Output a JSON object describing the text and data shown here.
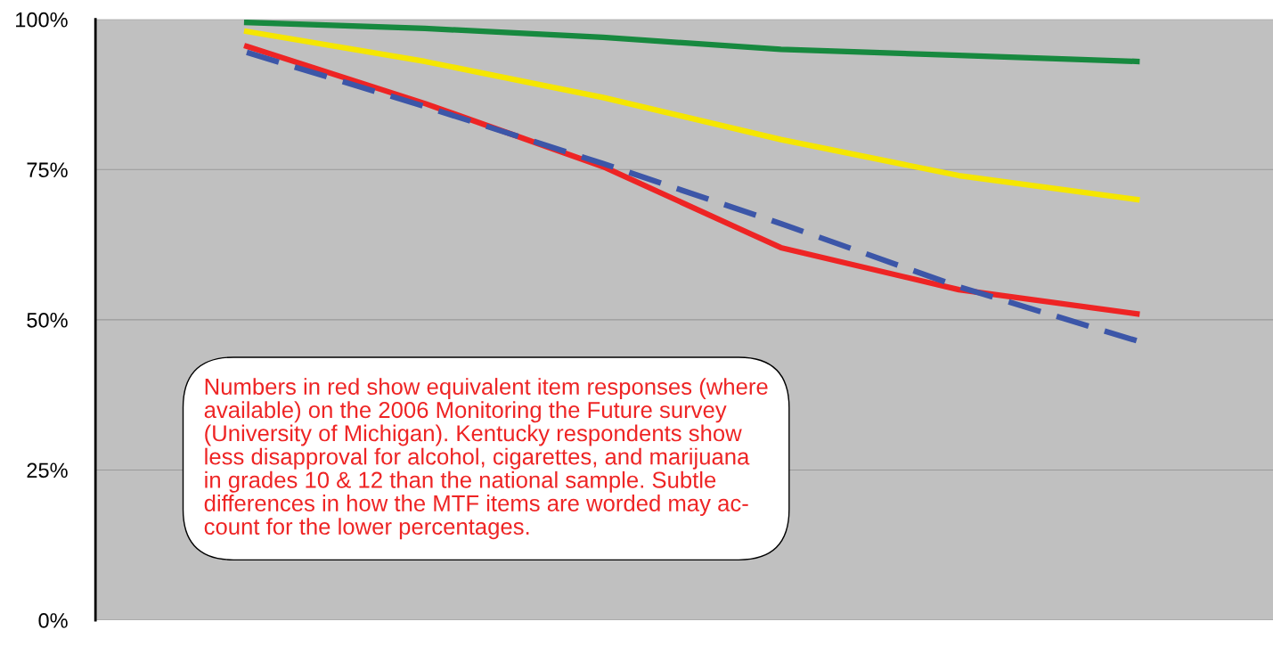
{
  "chart_data": {
    "type": "line",
    "categories": [
      null,
      null,
      null,
      null,
      null,
      null
    ],
    "series": [
      {
        "color": "#17893f",
        "values": [
          99.5,
          98.5,
          97,
          95,
          94,
          93
        ]
      },
      {
        "color": "#f5e600",
        "values": [
          98,
          93,
          87,
          80,
          74,
          70
        ]
      },
      {
        "color": "#ee2424",
        "values": [
          95.5,
          86,
          75.5,
          62,
          55,
          51
        ]
      },
      {
        "color": "#3c56a8",
        "values": [
          94.5,
          85.5,
          76,
          66,
          55.5,
          46.5
        ],
        "line_style": "dashed"
      }
    ],
    "ylim": [
      0,
      100
    ],
    "yticks": [
      {
        "value": 0,
        "label": "0%"
      },
      {
        "value": 25,
        "label": "25%"
      },
      {
        "value": 50,
        "label": "50%"
      },
      {
        "value": 75,
        "label": "75%"
      },
      {
        "value": 100,
        "label": "100%"
      }
    ],
    "grid": "y",
    "tick_labels": "y",
    "annotations": [
      "Numbers in red show equivalent item responses (where\navailable) on the 2006 Monitoring the Future survey\n(University of Michigan). Kentucky respondents show\nless disapproval for alcohol, cigarettes, and marijuana\nin grades 10 & 12 than the national sample. Subtle\ndifferences in how the MTF items are worded may ac-\ncount for the lower percentages."
    ]
  }
}
